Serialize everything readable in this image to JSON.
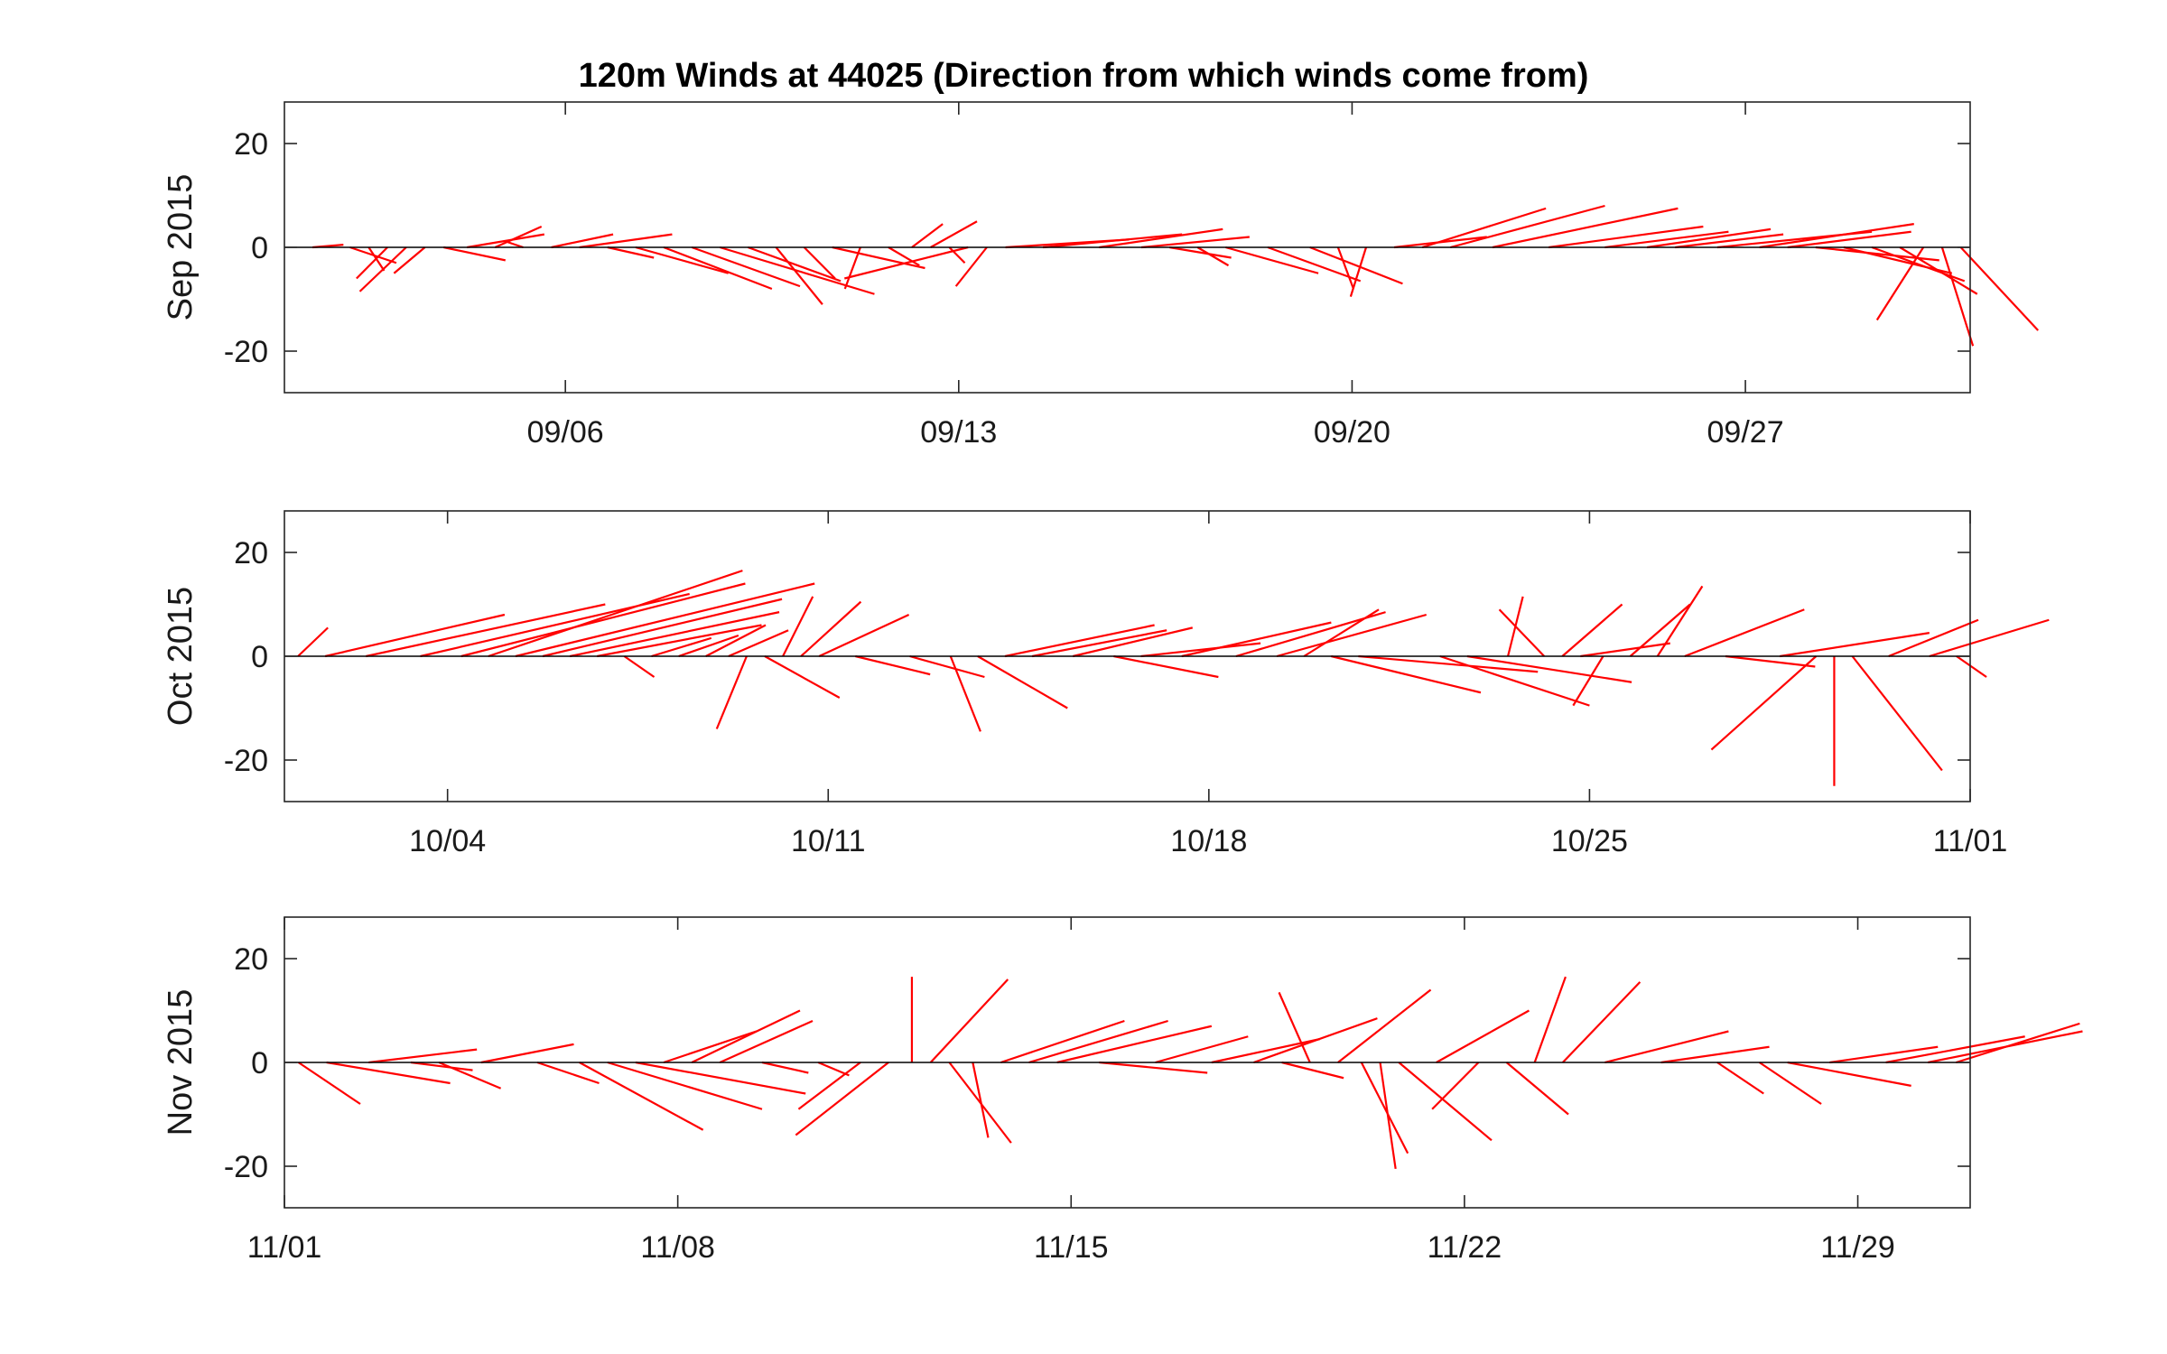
{
  "chart_data": {
    "type": "stick-plot",
    "title": "120m Winds at 44025 (Direction from which winds come from)",
    "ylim": [
      -28,
      28
    ],
    "yticks": [
      20,
      0,
      -20
    ],
    "series_color": "#ff0000",
    "grid": false,
    "panels": [
      {
        "ylabel": "Sep 2015",
        "xrange": [
          "2015-09-01",
          "2015-10-01"
        ],
        "xticks": [
          {
            "date": "2015-09-06",
            "label": "09/06"
          },
          {
            "date": "2015-09-13",
            "label": "09/13"
          },
          {
            "date": "2015-09-20",
            "label": "09/20"
          },
          {
            "date": "2015-09-27",
            "label": "09/27"
          }
        ],
        "sticks": [
          {
            "date": "2015-09-01",
            "u": 1.0,
            "v": 0.5
          },
          {
            "date": "2015-09-02",
            "u": 1.5,
            "v": -3.0
          },
          {
            "date": "2015-09-02",
            "u": 0.5,
            "v": -4.5
          },
          {
            "date": "2015-09-02",
            "u": -1.0,
            "v": -6.0
          },
          {
            "date": "2015-09-03",
            "u": -1.5,
            "v": -8.5
          },
          {
            "date": "2015-09-03",
            "u": -1.0,
            "v": -5.0
          },
          {
            "date": "2015-09-03",
            "u": 2.0,
            "v": -2.5
          },
          {
            "date": "2015-09-04",
            "u": 2.5,
            "v": 2.5
          },
          {
            "date": "2015-09-04",
            "u": 1.5,
            "v": 4.0
          },
          {
            "date": "2015-09-05",
            "u": -0.5,
            "v": 1.0
          },
          {
            "date": "2015-09-05",
            "u": 2.0,
            "v": 2.5
          },
          {
            "date": "2015-09-06",
            "u": 3.0,
            "v": 2.5
          },
          {
            "date": "2015-09-06",
            "u": 1.5,
            "v": -2.0
          },
          {
            "date": "2015-09-07",
            "u": 3.0,
            "v": -5.0
          },
          {
            "date": "2015-09-07",
            "u": 3.5,
            "v": -8.0
          },
          {
            "date": "2015-09-08",
            "u": 3.5,
            "v": -7.5
          },
          {
            "date": "2015-09-08",
            "u": 5.0,
            "v": -9.0
          },
          {
            "date": "2015-09-09",
            "u": 3.0,
            "v": -6.5
          },
          {
            "date": "2015-09-09",
            "u": 1.5,
            "v": -11.0
          },
          {
            "date": "2015-09-10",
            "u": 1.0,
            "v": -6.0
          },
          {
            "date": "2015-09-10",
            "u": 3.0,
            "v": -4.0
          },
          {
            "date": "2015-09-11",
            "u": -0.5,
            "v": -8.0
          },
          {
            "date": "2015-09-11",
            "u": 1.0,
            "v": -3.5
          },
          {
            "date": "2015-09-12",
            "u": 1.0,
            "v": 4.5
          },
          {
            "date": "2015-09-12",
            "u": 1.5,
            "v": 5.0
          },
          {
            "date": "2015-09-12",
            "u": 0.5,
            "v": -3.0
          },
          {
            "date": "2015-09-13",
            "u": -4.0,
            "v": -6.0
          },
          {
            "date": "2015-09-13",
            "u": -1.0,
            "v": -7.5
          },
          {
            "date": "2015-09-13",
            "u": 4.0,
            "v": 1.5
          },
          {
            "date": "2015-09-14",
            "u": 4.5,
            "v": 2.5
          },
          {
            "date": "2015-09-15",
            "u": 4.0,
            "v": 3.5
          },
          {
            "date": "2015-09-16",
            "u": 3.5,
            "v": 2.0
          },
          {
            "date": "2015-09-16",
            "u": 2.0,
            "v": -2.0
          },
          {
            "date": "2015-09-17",
            "u": 1.0,
            "v": -3.5
          },
          {
            "date": "2015-09-17",
            "u": 3.0,
            "v": -5.0
          },
          {
            "date": "2015-09-18",
            "u": 3.0,
            "v": -6.5
          },
          {
            "date": "2015-09-19",
            "u": 3.0,
            "v": -7.0
          },
          {
            "date": "2015-09-19",
            "u": 0.5,
            "v": -8.0
          },
          {
            "date": "2015-09-20",
            "u": -0.5,
            "v": -9.5
          },
          {
            "date": "2015-09-20",
            "u": 3.0,
            "v": 2.0
          },
          {
            "date": "2015-09-21",
            "u": 4.0,
            "v": 7.5
          },
          {
            "date": "2015-09-21",
            "u": 5.0,
            "v": 8.0
          },
          {
            "date": "2015-09-22",
            "u": 6.0,
            "v": 7.5
          },
          {
            "date": "2015-09-23",
            "u": 5.0,
            "v": 4.0
          },
          {
            "date": "2015-09-24",
            "u": 4.0,
            "v": 3.0
          },
          {
            "date": "2015-09-25",
            "u": 4.0,
            "v": 3.5
          },
          {
            "date": "2015-09-25",
            "u": 3.5,
            "v": 2.5
          },
          {
            "date": "2015-09-26",
            "u": 5.0,
            "v": 3.0
          },
          {
            "date": "2015-09-27",
            "u": 5.0,
            "v": 4.5
          },
          {
            "date": "2015-09-27",
            "u": 4.0,
            "v": 3.0
          },
          {
            "date": "2015-09-28",
            "u": 4.0,
            "v": -2.5
          },
          {
            "date": "2015-09-28",
            "u": 3.5,
            "v": -5.0
          },
          {
            "date": "2015-09-29",
            "u": 3.0,
            "v": -6.5
          },
          {
            "date": "2015-09-29",
            "u": 2.5,
            "v": -9.0
          },
          {
            "date": "2015-09-30",
            "u": -1.5,
            "v": -14.0
          },
          {
            "date": "2015-09-30",
            "u": 1.0,
            "v": -19.0
          },
          {
            "date": "2015-09-30",
            "u": 2.5,
            "v": -16.0
          }
        ]
      },
      {
        "ylabel": "Oct 2015",
        "xrange": [
          "2015-10-01",
          "2015-11-01"
        ],
        "xticks": [
          {
            "date": "2015-10-04",
            "label": "10/04"
          },
          {
            "date": "2015-10-11",
            "label": "10/11"
          },
          {
            "date": "2015-10-18",
            "label": "10/18"
          },
          {
            "date": "2015-10-25",
            "label": "10/25"
          },
          {
            "date": "2015-11-01",
            "label": "11/01"
          }
        ],
        "sticks": [
          {
            "date": "2015-10-01",
            "u": 1.0,
            "v": 5.5
          },
          {
            "date": "2015-10-01",
            "u": 6.0,
            "v": 8.0
          },
          {
            "date": "2015-10-02",
            "u": 8.0,
            "v": 10.0
          },
          {
            "date": "2015-10-03",
            "u": 9.0,
            "v": 12.0
          },
          {
            "date": "2015-10-04",
            "u": 9.5,
            "v": 14.0
          },
          {
            "date": "2015-10-04",
            "u": 8.5,
            "v": 16.5
          },
          {
            "date": "2015-10-05",
            "u": 10.0,
            "v": 14.0
          },
          {
            "date": "2015-10-05",
            "u": 8.0,
            "v": 11.0
          },
          {
            "date": "2015-10-06",
            "u": 7.0,
            "v": 8.5
          },
          {
            "date": "2015-10-06",
            "u": 5.5,
            "v": 6.0
          },
          {
            "date": "2015-10-07",
            "u": 1.0,
            "v": -4.0
          },
          {
            "date": "2015-10-07",
            "u": 2.0,
            "v": 3.5
          },
          {
            "date": "2015-10-08",
            "u": 2.0,
            "v": 4.0
          },
          {
            "date": "2015-10-08",
            "u": 2.0,
            "v": 6.0
          },
          {
            "date": "2015-10-09",
            "u": 2.0,
            "v": 5.0
          },
          {
            "date": "2015-10-09",
            "u": -1.0,
            "v": -14.0
          },
          {
            "date": "2015-10-09",
            "u": 2.5,
            "v": -8.0
          },
          {
            "date": "2015-10-10",
            "u": 1.0,
            "v": 11.5
          },
          {
            "date": "2015-10-10",
            "u": 2.0,
            "v": 10.5
          },
          {
            "date": "2015-10-10",
            "u": 3.0,
            "v": 8.0
          },
          {
            "date": "2015-10-11",
            "u": 2.5,
            "v": -3.5
          },
          {
            "date": "2015-10-12",
            "u": 2.5,
            "v": -4.0
          },
          {
            "date": "2015-10-13",
            "u": 1.0,
            "v": -14.5
          },
          {
            "date": "2015-10-13",
            "u": 3.0,
            "v": -10.0
          },
          {
            "date": "2015-10-14",
            "u": 5.0,
            "v": 6.0
          },
          {
            "date": "2015-10-14",
            "u": 4.5,
            "v": 5.0
          },
          {
            "date": "2015-10-15",
            "u": 4.0,
            "v": 5.5
          },
          {
            "date": "2015-10-16",
            "u": 3.5,
            "v": -4.0
          },
          {
            "date": "2015-10-16",
            "u": 4.0,
            "v": 2.5
          },
          {
            "date": "2015-10-17",
            "u": 5.0,
            "v": 6.5
          },
          {
            "date": "2015-10-18",
            "u": 5.0,
            "v": 8.5
          },
          {
            "date": "2015-10-19",
            "u": 5.0,
            "v": 8.0
          },
          {
            "date": "2015-10-19",
            "u": 2.5,
            "v": 9.0
          },
          {
            "date": "2015-10-20",
            "u": 5.0,
            "v": -7.0
          },
          {
            "date": "2015-10-20",
            "u": 6.0,
            "v": -3.0
          },
          {
            "date": "2015-10-22",
            "u": 5.0,
            "v": -9.5
          },
          {
            "date": "2015-10-22",
            "u": 5.5,
            "v": -5.0
          },
          {
            "date": "2015-10-23",
            "u": 0.5,
            "v": 11.5
          },
          {
            "date": "2015-10-24",
            "u": -1.5,
            "v": 9.0
          },
          {
            "date": "2015-10-24",
            "u": 2.0,
            "v": 10.0
          },
          {
            "date": "2015-10-24",
            "u": 3.0,
            "v": 2.5
          },
          {
            "date": "2015-10-25",
            "u": -1.0,
            "v": -9.5
          },
          {
            "date": "2015-10-25",
            "u": 2.0,
            "v": 10.0
          },
          {
            "date": "2015-10-26",
            "u": 1.5,
            "v": 13.5
          },
          {
            "date": "2015-10-26",
            "u": 4.0,
            "v": 9.0
          },
          {
            "date": "2015-10-27",
            "u": 3.0,
            "v": -2.0
          },
          {
            "date": "2015-10-28",
            "u": 5.0,
            "v": 4.5
          },
          {
            "date": "2015-10-29",
            "u": -3.5,
            "v": -18.0
          },
          {
            "date": "2015-10-29",
            "u": 0.0,
            "v": -25.0
          },
          {
            "date": "2015-10-29",
            "u": 3.0,
            "v": -22.0
          },
          {
            "date": "2015-10-30",
            "u": 3.0,
            "v": 7.0
          },
          {
            "date": "2015-10-31",
            "u": 4.0,
            "v": 7.0
          },
          {
            "date": "2015-10-31",
            "u": 1.0,
            "v": -4.0
          }
        ]
      },
      {
        "ylabel": "Nov 2015",
        "xrange": [
          "2015-11-01",
          "2015-12-01"
        ],
        "xticks": [
          {
            "date": "2015-11-01",
            "label": "11/01"
          },
          {
            "date": "2015-11-08",
            "label": "11/08"
          },
          {
            "date": "2015-11-15",
            "label": "11/15"
          },
          {
            "date": "2015-11-22",
            "label": "11/22"
          },
          {
            "date": "2015-11-29",
            "label": "11/29"
          }
        ],
        "sticks": [
          {
            "date": "2015-11-01",
            "u": 2.0,
            "v": -8.0
          },
          {
            "date": "2015-11-01",
            "u": 4.0,
            "v": -4.0
          },
          {
            "date": "2015-11-02",
            "u": 3.5,
            "v": 2.5
          },
          {
            "date": "2015-11-03",
            "u": 2.0,
            "v": -1.5
          },
          {
            "date": "2015-11-03",
            "u": 2.0,
            "v": -5.0
          },
          {
            "date": "2015-11-04",
            "u": 3.0,
            "v": 3.5
          },
          {
            "date": "2015-11-05",
            "u": 2.0,
            "v": -4.0
          },
          {
            "date": "2015-11-06",
            "u": 4.0,
            "v": -13.0
          },
          {
            "date": "2015-11-06",
            "u": 5.0,
            "v": -9.0
          },
          {
            "date": "2015-11-07",
            "u": 5.5,
            "v": -6.0
          },
          {
            "date": "2015-11-07",
            "u": 3.0,
            "v": 6.0
          },
          {
            "date": "2015-11-08",
            "u": 3.5,
            "v": 10.0
          },
          {
            "date": "2015-11-08",
            "u": 3.0,
            "v": 8.0
          },
          {
            "date": "2015-11-09",
            "u": 1.5,
            "v": -2.0
          },
          {
            "date": "2015-11-10",
            "u": 1.0,
            "v": -2.5
          },
          {
            "date": "2015-11-11",
            "u": -2.0,
            "v": -9.0
          },
          {
            "date": "2015-11-11",
            "u": -3.0,
            "v": -14.0
          },
          {
            "date": "2015-11-12",
            "u": 0.0,
            "v": 16.5
          },
          {
            "date": "2015-11-12",
            "u": 2.5,
            "v": 16.0
          },
          {
            "date": "2015-11-12",
            "u": 2.0,
            "v": -15.5
          },
          {
            "date": "2015-11-13",
            "u": 0.5,
            "v": -14.5
          },
          {
            "date": "2015-11-13",
            "u": 4.0,
            "v": 8.0
          },
          {
            "date": "2015-11-14",
            "u": 4.5,
            "v": 8.0
          },
          {
            "date": "2015-11-14",
            "u": 5.0,
            "v": 7.0
          },
          {
            "date": "2015-11-15",
            "u": 3.5,
            "v": -2.0
          },
          {
            "date": "2015-11-16",
            "u": 3.0,
            "v": 5.0
          },
          {
            "date": "2015-11-17",
            "u": 3.5,
            "v": 4.5
          },
          {
            "date": "2015-11-18",
            "u": 4.0,
            "v": 8.5
          },
          {
            "date": "2015-11-18",
            "u": 2.0,
            "v": -3.0
          },
          {
            "date": "2015-11-19",
            "u": -1.0,
            "v": 13.5
          },
          {
            "date": "2015-11-19",
            "u": 3.0,
            "v": 14.0
          },
          {
            "date": "2015-11-20",
            "u": 1.5,
            "v": -17.5
          },
          {
            "date": "2015-11-20",
            "u": 0.5,
            "v": -20.5
          },
          {
            "date": "2015-11-20",
            "u": 3.0,
            "v": -15.0
          },
          {
            "date": "2015-11-21",
            "u": 3.0,
            "v": 10.0
          },
          {
            "date": "2015-11-22",
            "u": -1.5,
            "v": -9.0
          },
          {
            "date": "2015-11-22",
            "u": 2.0,
            "v": -10.0
          },
          {
            "date": "2015-11-23",
            "u": 1.0,
            "v": 16.5
          },
          {
            "date": "2015-11-23",
            "u": 2.5,
            "v": 15.5
          },
          {
            "date": "2015-11-24",
            "u": 4.0,
            "v": 6.0
          },
          {
            "date": "2015-11-25",
            "u": 3.5,
            "v": 3.0
          },
          {
            "date": "2015-11-26",
            "u": 1.5,
            "v": -6.0
          },
          {
            "date": "2015-11-27",
            "u": 2.0,
            "v": -8.0
          },
          {
            "date": "2015-11-27",
            "u": 4.0,
            "v": -4.5
          },
          {
            "date": "2015-11-28",
            "u": 3.5,
            "v": 3.0
          },
          {
            "date": "2015-11-29",
            "u": 4.5,
            "v": 5.0
          },
          {
            "date": "2015-11-30",
            "u": 5.0,
            "v": 6.0
          },
          {
            "date": "2015-11-30",
            "u": 4.0,
            "v": 7.5
          }
        ]
      }
    ]
  }
}
